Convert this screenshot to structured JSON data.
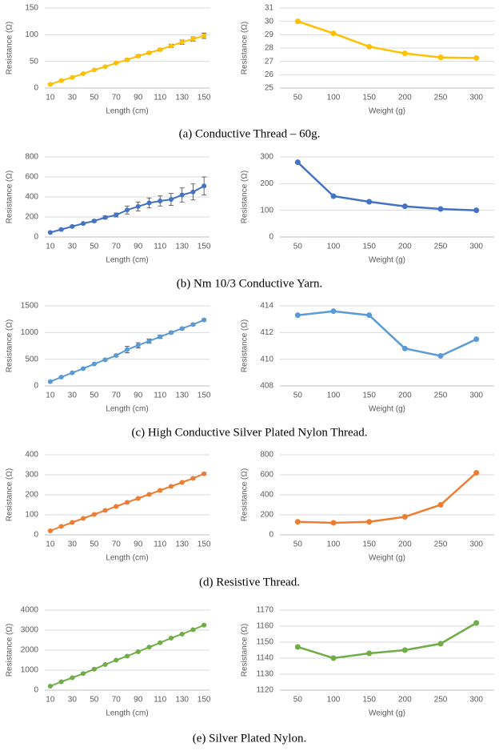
{
  "captions": [
    "(a) Conductive Thread – 60g.",
    "(b) Nm 10/3 Conductive Yarn.",
    "(c) High Conductive Silver Plated Nylon Thread.",
    "(d) Resistive Thread.",
    "(e) Silver Plated Nylon."
  ],
  "chart_data": [
    {
      "type": "line",
      "x": [
        10,
        20,
        30,
        40,
        50,
        60,
        70,
        80,
        90,
        100,
        110,
        120,
        130,
        140,
        150
      ],
      "values": [
        7,
        14,
        20,
        27,
        34,
        40,
        47,
        53,
        60,
        66,
        72,
        79,
        86,
        92,
        98
      ],
      "errors": [
        1,
        1,
        1,
        1,
        1,
        1,
        1,
        2,
        2,
        2,
        2,
        3,
        4,
        4,
        5
      ],
      "color": "#FFC000",
      "xlim": [
        5,
        155
      ],
      "xticks": [
        10,
        30,
        50,
        70,
        90,
        110,
        130,
        150
      ],
      "ylim": [
        0,
        150
      ],
      "yticks": [
        0,
        50,
        100,
        150
      ],
      "grid": true,
      "xlabel": "Length (cm)",
      "ylabel": "Resistance (Ω)"
    },
    {
      "type": "line",
      "categories": [
        "50",
        "100",
        "150",
        "200",
        "250",
        "300"
      ],
      "values": [
        30.0,
        29.1,
        28.1,
        27.6,
        27.3,
        27.25
      ],
      "color": "#FFC000",
      "ylim": [
        25,
        31
      ],
      "yticks": [
        25,
        26,
        27,
        28,
        29,
        30,
        31
      ],
      "grid": true,
      "xlabel": "Weight (g)",
      "ylabel": "Resistance (Ω)"
    },
    {
      "type": "line",
      "x": [
        10,
        20,
        30,
        40,
        50,
        60,
        70,
        80,
        90,
        100,
        110,
        120,
        130,
        140,
        150
      ],
      "values": [
        45,
        75,
        105,
        135,
        160,
        195,
        220,
        270,
        305,
        340,
        360,
        375,
        420,
        450,
        510
      ],
      "errors": [
        5,
        8,
        10,
        10,
        12,
        15,
        20,
        40,
        45,
        50,
        50,
        60,
        70,
        80,
        90
      ],
      "color": "#4472C4",
      "xlim": [
        5,
        155
      ],
      "xticks": [
        10,
        30,
        50,
        70,
        90,
        110,
        130,
        150
      ],
      "ylim": [
        0,
        800
      ],
      "yticks": [
        0,
        200,
        400,
        600,
        800
      ],
      "grid": true,
      "xlabel": "Length (cm)",
      "ylabel": "Resistance (Ω)"
    },
    {
      "type": "line",
      "categories": [
        "50",
        "100",
        "150",
        "200",
        "250",
        "300"
      ],
      "values": [
        280,
        153,
        132,
        115,
        105,
        100
      ],
      "color": "#4472C4",
      "ylim": [
        0,
        300
      ],
      "yticks": [
        0,
        100,
        200,
        300
      ],
      "grid": true,
      "xlabel": "Weight (g)",
      "ylabel": "Resistance (Ω)"
    },
    {
      "type": "line",
      "x": [
        10,
        20,
        30,
        40,
        50,
        60,
        70,
        80,
        90,
        100,
        110,
        120,
        130,
        140,
        150
      ],
      "values": [
        80,
        165,
        245,
        325,
        410,
        490,
        570,
        680,
        760,
        840,
        920,
        1000,
        1075,
        1150,
        1235
      ],
      "errors": [
        10,
        10,
        10,
        10,
        10,
        15,
        20,
        60,
        50,
        40,
        30,
        20,
        20,
        20,
        20
      ],
      "color": "#5B9BD5",
      "xlim": [
        5,
        155
      ],
      "xticks": [
        10,
        30,
        50,
        70,
        90,
        110,
        130,
        150
      ],
      "ylim": [
        0,
        1500
      ],
      "yticks": [
        0,
        500,
        1000,
        1500
      ],
      "grid": true,
      "xlabel": "Length (cm)",
      "ylabel": "Resistance (Ω)"
    },
    {
      "type": "line",
      "categories": [
        "50",
        "100",
        "150",
        "200",
        "250",
        "300"
      ],
      "values": [
        413.3,
        413.6,
        413.3,
        410.8,
        410.25,
        411.5
      ],
      "color": "#5B9BD5",
      "ylim": [
        408,
        414
      ],
      "yticks": [
        408,
        410,
        412,
        414
      ],
      "grid": true,
      "xlabel": "Weight (g)",
      "ylabel": "Resistance (Ω)"
    },
    {
      "type": "line",
      "x": [
        10,
        20,
        30,
        40,
        50,
        60,
        70,
        80,
        90,
        100,
        110,
        120,
        130,
        140,
        150
      ],
      "values": [
        20,
        42,
        62,
        82,
        102,
        122,
        142,
        162,
        182,
        202,
        222,
        242,
        262,
        282,
        305
      ],
      "errors": [
        2,
        2,
        3,
        3,
        3,
        3,
        3,
        3,
        3,
        3,
        3,
        3,
        4,
        4,
        4
      ],
      "color": "#ED7D31",
      "xlim": [
        5,
        155
      ],
      "xticks": [
        10,
        30,
        50,
        70,
        90,
        110,
        130,
        150
      ],
      "ylim": [
        0,
        400
      ],
      "yticks": [
        0,
        100,
        200,
        300,
        400
      ],
      "grid": true,
      "xlabel": "Length (cm)",
      "ylabel": "Resistance (Ω)"
    },
    {
      "type": "line",
      "categories": [
        "50",
        "100",
        "150",
        "200",
        "250",
        "300"
      ],
      "values": [
        130,
        120,
        130,
        180,
        300,
        620
      ],
      "color": "#ED7D31",
      "ylim": [
        0,
        800
      ],
      "yticks": [
        0,
        200,
        400,
        600,
        800
      ],
      "grid": true,
      "xlabel": "Weight (g)",
      "ylabel": "Resistance (Ω)"
    },
    {
      "type": "line",
      "x": [
        10,
        20,
        30,
        40,
        50,
        60,
        70,
        80,
        90,
        100,
        110,
        120,
        130,
        140,
        150
      ],
      "values": [
        200,
        420,
        620,
        830,
        1050,
        1280,
        1500,
        1700,
        1920,
        2150,
        2370,
        2600,
        2800,
        3020,
        3250
      ],
      "errors": [
        20,
        20,
        25,
        25,
        30,
        30,
        30,
        30,
        30,
        30,
        30,
        30,
        30,
        30,
        30
      ],
      "color": "#70AD47",
      "xlim": [
        5,
        155
      ],
      "xticks": [
        10,
        30,
        50,
        70,
        90,
        110,
        130,
        150
      ],
      "ylim": [
        0,
        4000
      ],
      "yticks": [
        0,
        1000,
        2000,
        3000,
        4000
      ],
      "grid": true,
      "xlabel": "Length (cm)",
      "ylabel": "Resistance (Ω)"
    },
    {
      "type": "line",
      "categories": [
        "50",
        "100",
        "150",
        "200",
        "250",
        "300"
      ],
      "values": [
        1147,
        1140,
        1143,
        1145,
        1149,
        1162
      ],
      "color": "#70AD47",
      "ylim": [
        1120,
        1170
      ],
      "yticks": [
        1120,
        1130,
        1140,
        1150,
        1160,
        1170
      ],
      "grid": true,
      "xlabel": "Weight (g)",
      "ylabel": "Resistance (Ω)"
    }
  ]
}
